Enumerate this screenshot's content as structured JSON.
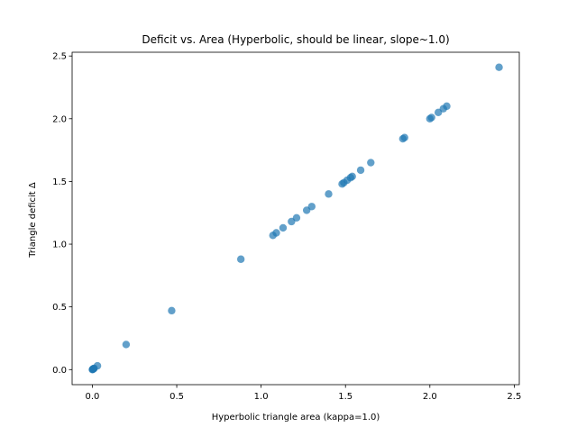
{
  "chart_data": {
    "type": "scatter",
    "title": "Deficit vs. Area (Hyperbolic, should be linear, slope~1.0)",
    "xlabel": "Hyperbolic triangle area (kappa=1.0)",
    "ylabel": "Triangle deficit Δ",
    "xlim": [
      -0.12,
      2.53
    ],
    "ylim": [
      -0.12,
      2.53
    ],
    "xticks": [
      0.0,
      0.5,
      1.0,
      1.5,
      2.0,
      2.5
    ],
    "xtick_labels": [
      "0.0",
      "0.5",
      "1.0",
      "1.5",
      "2.0",
      "2.5"
    ],
    "yticks": [
      0.0,
      0.5,
      1.0,
      1.5,
      2.0,
      2.5
    ],
    "ytick_labels": [
      "0.0",
      "0.5",
      "1.0",
      "1.5",
      "2.0",
      "2.5"
    ],
    "grid": false,
    "marker_color": "#1f77b4",
    "marker_alpha": 0.7,
    "points": [
      {
        "x": 0.0,
        "y": 0.0
      },
      {
        "x": 0.002,
        "y": 0.002
      },
      {
        "x": 0.004,
        "y": 0.004
      },
      {
        "x": 0.005,
        "y": 0.005
      },
      {
        "x": 0.008,
        "y": 0.008
      },
      {
        "x": 0.01,
        "y": 0.01
      },
      {
        "x": 0.03,
        "y": 0.03
      },
      {
        "x": 0.2,
        "y": 0.2
      },
      {
        "x": 0.47,
        "y": 0.47
      },
      {
        "x": 0.88,
        "y": 0.88
      },
      {
        "x": 1.07,
        "y": 1.07
      },
      {
        "x": 1.09,
        "y": 1.09
      },
      {
        "x": 1.13,
        "y": 1.13
      },
      {
        "x": 1.18,
        "y": 1.18
      },
      {
        "x": 1.21,
        "y": 1.21
      },
      {
        "x": 1.27,
        "y": 1.27
      },
      {
        "x": 1.3,
        "y": 1.3
      },
      {
        "x": 1.4,
        "y": 1.4
      },
      {
        "x": 1.48,
        "y": 1.48
      },
      {
        "x": 1.49,
        "y": 1.49
      },
      {
        "x": 1.51,
        "y": 1.51
      },
      {
        "x": 1.53,
        "y": 1.53
      },
      {
        "x": 1.54,
        "y": 1.54
      },
      {
        "x": 1.59,
        "y": 1.59
      },
      {
        "x": 1.65,
        "y": 1.65
      },
      {
        "x": 1.84,
        "y": 1.84
      },
      {
        "x": 1.85,
        "y": 1.85
      },
      {
        "x": 2.0,
        "y": 2.0
      },
      {
        "x": 2.01,
        "y": 2.01
      },
      {
        "x": 2.05,
        "y": 2.05
      },
      {
        "x": 2.08,
        "y": 2.08
      },
      {
        "x": 2.1,
        "y": 2.1
      },
      {
        "x": 2.41,
        "y": 2.41
      }
    ]
  }
}
